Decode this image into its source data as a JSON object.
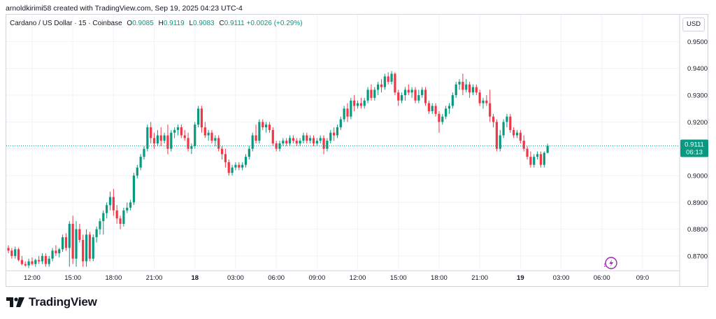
{
  "caption": "arnoldkirimi58 created with TradingView.com, Sep 19, 2025 04:23 UTC-4",
  "legend": {
    "symbol": "Cardano / US Dollar · 15 · Coinbase",
    "o_label": "O",
    "o_value": "0.9085",
    "h_label": "H",
    "h_value": "0.9119",
    "l_label": "L",
    "l_value": "0.9083",
    "c_label": "C",
    "c_value": "0.9111",
    "change": "+0.0026 (+0.29%)"
  },
  "currency_button": "USD",
  "brand": "TradingView",
  "colors": {
    "up": "#089981",
    "down": "#f23645",
    "grid": "#f0f3fa",
    "price_line": "#089981"
  },
  "chart_data": {
    "type": "candlestick",
    "title": "Cardano / US Dollar · 15 · Coinbase",
    "ylim": [
      0.8645,
      0.9535
    ],
    "y_ticks": [
      "0.9500",
      "0.9400",
      "0.9300",
      "0.9200",
      "0.9100",
      "0.9000",
      "0.8900",
      "0.8800",
      "0.8700"
    ],
    "x_ticks": [
      {
        "label": "12:00",
        "index": 7
      },
      {
        "label": "15:00",
        "index": 19
      },
      {
        "label": "18:00",
        "index": 31
      },
      {
        "label": "21:00",
        "index": 43
      },
      {
        "label": "18",
        "index": 55
      },
      {
        "label": "03:00",
        "index": 67
      },
      {
        "label": "06:00",
        "index": 79
      },
      {
        "label": "09:00",
        "index": 91
      },
      {
        "label": "12:00",
        "index": 103
      },
      {
        "label": "15:00",
        "index": 115
      },
      {
        "label": "18:00",
        "index": 127
      },
      {
        "label": "21:00",
        "index": 139
      },
      {
        "label": "19",
        "index": 151
      },
      {
        "label": "03:00",
        "index": 163
      },
      {
        "label": "06:00",
        "index": 175
      },
      {
        "label": "09:0",
        "index": 187
      }
    ],
    "last_price": "0.9111",
    "countdown": "06:13",
    "candles": [
      [
        0.873,
        0.874,
        0.871,
        0.872
      ],
      [
        0.872,
        0.873,
        0.869,
        0.87
      ],
      [
        0.87,
        0.8735,
        0.869,
        0.8725
      ],
      [
        0.8725,
        0.873,
        0.868,
        0.8685
      ],
      [
        0.8685,
        0.87,
        0.8665,
        0.867
      ],
      [
        0.867,
        0.868,
        0.866,
        0.8665
      ],
      [
        0.8665,
        0.869,
        0.8655,
        0.868
      ],
      [
        0.868,
        0.8695,
        0.8665,
        0.867
      ],
      [
        0.867,
        0.869,
        0.866,
        0.8685
      ],
      [
        0.8685,
        0.87,
        0.867,
        0.868
      ],
      [
        0.868,
        0.871,
        0.867,
        0.87
      ],
      [
        0.87,
        0.871,
        0.866,
        0.867
      ],
      [
        0.867,
        0.87,
        0.866,
        0.869
      ],
      [
        0.869,
        0.873,
        0.868,
        0.872
      ],
      [
        0.872,
        0.874,
        0.87,
        0.871
      ],
      [
        0.871,
        0.873,
        0.8695,
        0.8725
      ],
      [
        0.8725,
        0.878,
        0.8715,
        0.877
      ],
      [
        0.877,
        0.8785,
        0.872,
        0.873
      ],
      [
        0.873,
        0.883,
        0.866,
        0.882
      ],
      [
        0.882,
        0.885,
        0.867,
        0.869
      ],
      [
        0.869,
        0.883,
        0.866,
        0.88
      ],
      [
        0.88,
        0.882,
        0.875,
        0.876
      ],
      [
        0.876,
        0.878,
        0.866,
        0.868
      ],
      [
        0.868,
        0.88,
        0.866,
        0.878
      ],
      [
        0.878,
        0.879,
        0.868,
        0.869
      ],
      [
        0.869,
        0.878,
        0.868,
        0.877
      ],
      [
        0.877,
        0.881,
        0.875,
        0.88
      ],
      [
        0.88,
        0.884,
        0.878,
        0.883
      ],
      [
        0.883,
        0.887,
        0.878,
        0.886
      ],
      [
        0.886,
        0.89,
        0.884,
        0.889
      ],
      [
        0.889,
        0.894,
        0.887,
        0.892
      ],
      [
        0.892,
        0.895,
        0.885,
        0.887
      ],
      [
        0.887,
        0.889,
        0.882,
        0.884
      ],
      [
        0.884,
        0.885,
        0.88,
        0.882
      ],
      [
        0.882,
        0.888,
        0.881,
        0.887
      ],
      [
        0.887,
        0.89,
        0.886,
        0.888
      ],
      [
        0.888,
        0.891,
        0.887,
        0.89
      ],
      [
        0.89,
        0.901,
        0.889,
        0.9
      ],
      [
        0.9,
        0.904,
        0.899,
        0.903
      ],
      [
        0.903,
        0.908,
        0.902,
        0.907
      ],
      [
        0.907,
        0.911,
        0.906,
        0.91
      ],
      [
        0.91,
        0.919,
        0.909,
        0.918
      ],
      [
        0.918,
        0.92,
        0.912,
        0.914
      ],
      [
        0.914,
        0.916,
        0.91,
        0.912
      ],
      [
        0.912,
        0.917,
        0.911,
        0.915
      ],
      [
        0.915,
        0.918,
        0.911,
        0.913
      ],
      [
        0.913,
        0.916,
        0.912,
        0.915
      ],
      [
        0.915,
        0.919,
        0.908,
        0.91
      ],
      [
        0.91,
        0.917,
        0.909,
        0.916
      ],
      [
        0.916,
        0.918,
        0.914,
        0.917
      ],
      [
        0.917,
        0.919,
        0.915,
        0.918
      ],
      [
        0.918,
        0.919,
        0.914,
        0.915
      ],
      [
        0.915,
        0.917,
        0.913,
        0.914
      ],
      [
        0.914,
        0.916,
        0.909,
        0.91
      ],
      [
        0.91,
        0.912,
        0.908,
        0.911
      ],
      [
        0.911,
        0.92,
        0.91,
        0.919
      ],
      [
        0.919,
        0.926,
        0.918,
        0.925
      ],
      [
        0.925,
        0.926,
        0.916,
        0.918
      ],
      [
        0.918,
        0.92,
        0.914,
        0.915
      ],
      [
        0.915,
        0.917,
        0.913,
        0.916
      ],
      [
        0.916,
        0.917,
        0.912,
        0.913
      ],
      [
        0.913,
        0.915,
        0.911,
        0.914
      ],
      [
        0.914,
        0.915,
        0.909,
        0.91
      ],
      [
        0.91,
        0.911,
        0.906,
        0.908
      ],
      [
        0.908,
        0.91,
        0.903,
        0.905
      ],
      [
        0.905,
        0.906,
        0.9,
        0.901
      ],
      [
        0.901,
        0.904,
        0.9,
        0.903
      ],
      [
        0.903,
        0.905,
        0.902,
        0.904
      ],
      [
        0.904,
        0.905,
        0.902,
        0.903
      ],
      [
        0.903,
        0.905,
        0.902,
        0.904
      ],
      [
        0.904,
        0.908,
        0.903,
        0.907
      ],
      [
        0.907,
        0.911,
        0.906,
        0.91
      ],
      [
        0.91,
        0.916,
        0.909,
        0.915
      ],
      [
        0.915,
        0.919,
        0.912,
        0.913
      ],
      [
        0.913,
        0.921,
        0.912,
        0.92
      ],
      [
        0.92,
        0.921,
        0.917,
        0.918
      ],
      [
        0.918,
        0.92,
        0.916,
        0.919
      ],
      [
        0.919,
        0.92,
        0.916,
        0.917
      ],
      [
        0.917,
        0.918,
        0.911,
        0.912
      ],
      [
        0.912,
        0.913,
        0.909,
        0.91
      ],
      [
        0.91,
        0.913,
        0.909,
        0.912
      ],
      [
        0.912,
        0.914,
        0.911,
        0.913
      ],
      [
        0.913,
        0.914,
        0.911,
        0.912
      ],
      [
        0.912,
        0.915,
        0.911,
        0.914
      ],
      [
        0.914,
        0.915,
        0.912,
        0.913
      ],
      [
        0.913,
        0.914,
        0.911,
        0.912
      ],
      [
        0.912,
        0.914,
        0.911,
        0.913
      ],
      [
        0.913,
        0.916,
        0.912,
        0.915
      ],
      [
        0.915,
        0.916,
        0.912,
        0.913
      ],
      [
        0.913,
        0.915,
        0.912,
        0.914
      ],
      [
        0.914,
        0.915,
        0.911,
        0.912
      ],
      [
        0.912,
        0.914,
        0.911,
        0.913
      ],
      [
        0.913,
        0.915,
        0.912,
        0.914
      ],
      [
        0.914,
        0.915,
        0.908,
        0.91
      ],
      [
        0.91,
        0.914,
        0.909,
        0.913
      ],
      [
        0.913,
        0.917,
        0.912,
        0.916
      ],
      [
        0.916,
        0.918,
        0.913,
        0.915
      ],
      [
        0.915,
        0.919,
        0.914,
        0.918
      ],
      [
        0.918,
        0.922,
        0.917,
        0.921
      ],
      [
        0.921,
        0.926,
        0.92,
        0.925
      ],
      [
        0.925,
        0.927,
        0.92,
        0.922
      ],
      [
        0.922,
        0.929,
        0.921,
        0.928
      ],
      [
        0.928,
        0.93,
        0.924,
        0.926
      ],
      [
        0.926,
        0.928,
        0.925,
        0.927
      ],
      [
        0.927,
        0.929,
        0.925,
        0.926
      ],
      [
        0.926,
        0.929,
        0.925,
        0.928
      ],
      [
        0.928,
        0.933,
        0.927,
        0.932
      ],
      [
        0.932,
        0.934,
        0.928,
        0.929
      ],
      [
        0.929,
        0.933,
        0.928,
        0.932
      ],
      [
        0.932,
        0.935,
        0.93,
        0.934
      ],
      [
        0.934,
        0.936,
        0.931,
        0.933
      ],
      [
        0.933,
        0.938,
        0.932,
        0.937
      ],
      [
        0.937,
        0.9385,
        0.934,
        0.935
      ],
      [
        0.935,
        0.939,
        0.934,
        0.938
      ],
      [
        0.938,
        0.9385,
        0.93,
        0.931
      ],
      [
        0.931,
        0.932,
        0.926,
        0.928
      ],
      [
        0.928,
        0.931,
        0.927,
        0.93
      ],
      [
        0.93,
        0.933,
        0.928,
        0.932
      ],
      [
        0.932,
        0.934,
        0.93,
        0.931
      ],
      [
        0.931,
        0.933,
        0.929,
        0.932
      ],
      [
        0.932,
        0.933,
        0.927,
        0.928
      ],
      [
        0.928,
        0.932,
        0.927,
        0.93
      ],
      [
        0.93,
        0.933,
        0.929,
        0.932
      ],
      [
        0.932,
        0.933,
        0.926,
        0.927
      ],
      [
        0.927,
        0.928,
        0.923,
        0.924
      ],
      [
        0.924,
        0.927,
        0.923,
        0.926
      ],
      [
        0.926,
        0.927,
        0.922,
        0.923
      ],
      [
        0.923,
        0.924,
        0.916,
        0.92
      ],
      [
        0.92,
        0.923,
        0.919,
        0.922
      ],
      [
        0.922,
        0.926,
        0.921,
        0.925
      ],
      [
        0.925,
        0.927,
        0.923,
        0.926
      ],
      [
        0.926,
        0.931,
        0.925,
        0.93
      ],
      [
        0.93,
        0.935,
        0.929,
        0.934
      ],
      [
        0.934,
        0.936,
        0.932,
        0.935
      ],
      [
        0.935,
        0.938,
        0.93,
        0.932
      ],
      [
        0.932,
        0.936,
        0.931,
        0.934
      ],
      [
        0.934,
        0.935,
        0.929,
        0.931
      ],
      [
        0.931,
        0.934,
        0.93,
        0.933
      ],
      [
        0.933,
        0.934,
        0.93,
        0.931
      ],
      [
        0.931,
        0.932,
        0.926,
        0.927
      ],
      [
        0.927,
        0.929,
        0.925,
        0.928
      ],
      [
        0.928,
        0.93,
        0.926,
        0.927
      ],
      [
        0.927,
        0.932,
        0.92,
        0.922
      ],
      [
        0.922,
        0.923,
        0.918,
        0.92
      ],
      [
        0.92,
        0.921,
        0.909,
        0.91
      ],
      [
        0.91,
        0.917,
        0.909,
        0.915
      ],
      [
        0.915,
        0.921,
        0.914,
        0.92
      ],
      [
        0.92,
        0.923,
        0.918,
        0.922
      ],
      [
        0.922,
        0.923,
        0.916,
        0.917
      ],
      [
        0.917,
        0.918,
        0.914,
        0.915
      ],
      [
        0.915,
        0.917,
        0.914,
        0.916
      ],
      [
        0.916,
        0.917,
        0.912,
        0.913
      ],
      [
        0.913,
        0.915,
        0.909,
        0.91
      ],
      [
        0.91,
        0.911,
        0.906,
        0.907
      ],
      [
        0.907,
        0.909,
        0.903,
        0.904
      ],
      [
        0.904,
        0.908,
        0.903,
        0.907
      ],
      [
        0.907,
        0.909,
        0.906,
        0.908
      ],
      [
        0.908,
        0.909,
        0.903,
        0.904
      ],
      [
        0.904,
        0.909,
        0.903,
        0.9085
      ],
      [
        0.9085,
        0.9119,
        0.9083,
        0.9111
      ]
    ]
  }
}
